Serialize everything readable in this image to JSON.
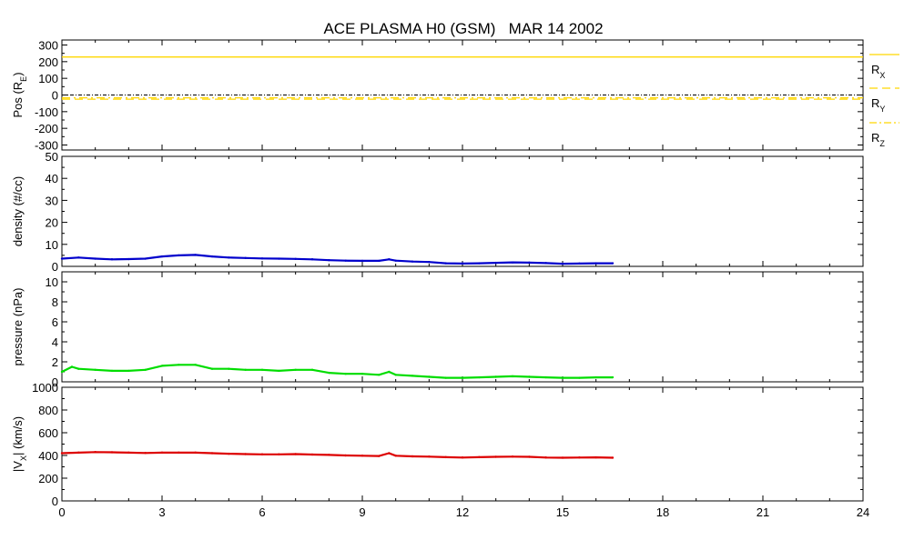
{
  "chart_data": {
    "type": "line",
    "title": "ACE PLASMA H0 (GSM)   MAR 14 2002",
    "x_axis": {
      "range": [
        0,
        24
      ],
      "ticks": [
        0,
        3,
        6,
        9,
        12,
        15,
        18,
        21,
        24
      ],
      "tick_labels": [
        "0",
        "3",
        "6",
        "9",
        "12",
        "15",
        "18",
        "21",
        "24"
      ]
    },
    "panels": [
      {
        "id": "pos",
        "ylabel": "Pos (R",
        "ylabel_sub": "E",
        "ylabel_tail": ")",
        "ylim": [
          -330,
          330
        ],
        "yticks": [
          -300,
          -200,
          -100,
          0,
          100,
          200,
          300
        ],
        "ytick_labels": [
          "-300",
          "-200",
          "-100",
          "0",
          "100",
          "200",
          "300"
        ],
        "zero_line": true,
        "series": [
          {
            "name": "R",
            "name_sub": "X",
            "color": "#ffd700",
            "style": "solid",
            "x": [
              0,
              24
            ],
            "y": [
              228,
              228
            ]
          },
          {
            "name": "R",
            "name_sub": "Y",
            "color": "#ffd700",
            "style": "dashed",
            "x": [
              0,
              24
            ],
            "y": [
              -25,
              -25
            ]
          },
          {
            "name": "R",
            "name_sub": "Z",
            "color": "#ffd700",
            "style": "dashdot",
            "x": [
              0,
              24
            ],
            "y": [
              -17,
              -17
            ]
          }
        ]
      },
      {
        "id": "density",
        "ylabel": "density (#/cc)",
        "ylim": [
          0,
          50
        ],
        "yticks": [
          0,
          10,
          20,
          30,
          40,
          50
        ],
        "ytick_labels": [
          "0",
          "10",
          "20",
          "30",
          "40",
          "50"
        ],
        "series": [
          {
            "color": "#0000cc",
            "x": [
              0,
              0.5,
              1,
              1.5,
              2,
              2.5,
              3,
              3.5,
              4,
              4.5,
              5,
              5.5,
              6,
              6.5,
              7,
              7.5,
              8,
              8.5,
              9,
              9.5,
              9.8,
              10,
              10.5,
              11,
              11.5,
              12,
              12.5,
              13,
              13.5,
              14,
              14.5,
              15,
              15.5,
              16,
              16.5
            ],
            "y": [
              3.5,
              4,
              3.5,
              3.2,
              3.3,
              3.5,
              4.5,
              5,
              5.2,
              4.5,
              4,
              3.8,
              3.6,
              3.5,
              3.4,
              3.2,
              2.8,
              2.6,
              2.5,
              2.5,
              3.2,
              2.6,
              2.2,
              2,
              1.4,
              1.3,
              1.4,
              1.6,
              1.8,
              1.7,
              1.5,
              1.2,
              1.3,
              1.4,
              1.4
            ]
          }
        ]
      },
      {
        "id": "pressure",
        "ylabel": "pressure (nPa)",
        "ylim": [
          0,
          11
        ],
        "yticks": [
          0,
          2,
          4,
          6,
          8,
          10
        ],
        "ytick_labels": [
          "0",
          "2",
          "4",
          "6",
          "8",
          "10"
        ],
        "series": [
          {
            "color": "#00dd00",
            "x": [
              0,
              0.3,
              0.5,
              1,
              1.5,
              2,
              2.5,
              3,
              3.5,
              4,
              4.5,
              5,
              5.5,
              6,
              6.5,
              7,
              7.5,
              8,
              8.5,
              9,
              9.5,
              9.8,
              10,
              10.5,
              11,
              11.5,
              12,
              12.5,
              13,
              13.5,
              14,
              14.5,
              15,
              15.5,
              16,
              16.5
            ],
            "y": [
              1.0,
              1.5,
              1.3,
              1.2,
              1.1,
              1.1,
              1.2,
              1.6,
              1.7,
              1.7,
              1.3,
              1.3,
              1.2,
              1.2,
              1.1,
              1.2,
              1.2,
              0.9,
              0.8,
              0.8,
              0.7,
              1.0,
              0.7,
              0.6,
              0.5,
              0.4,
              0.4,
              0.45,
              0.5,
              0.55,
              0.5,
              0.45,
              0.4,
              0.4,
              0.45,
              0.45
            ]
          }
        ]
      },
      {
        "id": "vx",
        "ylabel": "|V",
        "ylabel_sub": "X",
        "ylabel_tail": "| (km/s)",
        "ylim": [
          0,
          1000
        ],
        "yticks": [
          0,
          200,
          400,
          600,
          800,
          1000
        ],
        "ytick_labels": [
          "0",
          "200",
          "400",
          "600",
          "800",
          "1000"
        ],
        "series": [
          {
            "color": "#dd0000",
            "x": [
              0,
              0.5,
              1,
              1.5,
              2,
              2.5,
              3,
              3.5,
              4,
              4.5,
              5,
              5.5,
              6,
              6.5,
              7,
              7.5,
              8,
              8.5,
              9,
              9.5,
              9.8,
              10,
              10.5,
              11,
              11.5,
              12,
              12.5,
              13,
              13.5,
              14,
              14.5,
              15,
              15.5,
              16,
              16.5
            ],
            "y": [
              420,
              425,
              430,
              428,
              425,
              422,
              425,
              425,
              425,
              420,
              415,
              412,
              410,
              410,
              412,
              408,
              405,
              400,
              398,
              395,
              420,
              398,
              392,
              390,
              385,
              382,
              385,
              388,
              390,
              388,
              382,
              380,
              382,
              383,
              380
            ]
          }
        ]
      }
    ]
  }
}
